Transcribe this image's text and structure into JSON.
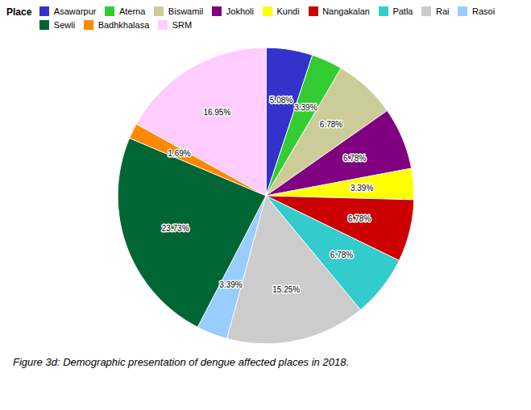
{
  "chart_data": {
    "type": "pie",
    "categories": [
      "Asawarpur",
      "Aterna",
      "Biswamil",
      "Jokholi",
      "Kundi",
      "Nangakalan",
      "Patla",
      "Rai",
      "Rasoi",
      "Sewli",
      "Badhkhalasa",
      "SRM"
    ],
    "values": [
      5.08,
      3.39,
      6.78,
      6.78,
      3.39,
      6.78,
      6.78,
      15.25,
      3.39,
      23.73,
      1.69,
      16.95
    ],
    "value_labels": [
      "5.08%",
      "3.39%",
      "6.78%",
      "6.78%",
      "3.39%",
      "6.78%",
      "6.78%",
      "15.25%",
      "3.39%",
      "23.73%",
      "1.69%",
      "16.95%"
    ],
    "colors": [
      "#3333cc",
      "#33cc33",
      "#cccc99",
      "#800080",
      "#ffff00",
      "#cc0000",
      "#33cccc",
      "#cccccc",
      "#99ccff",
      "#006633",
      "#ff8800",
      "#ffccff"
    ],
    "data_labels": true,
    "legend": "upper right",
    "legend_title": "Place",
    "caption": "Figure 3d:  Demographic presentation of dengue affected places in 2018."
  }
}
